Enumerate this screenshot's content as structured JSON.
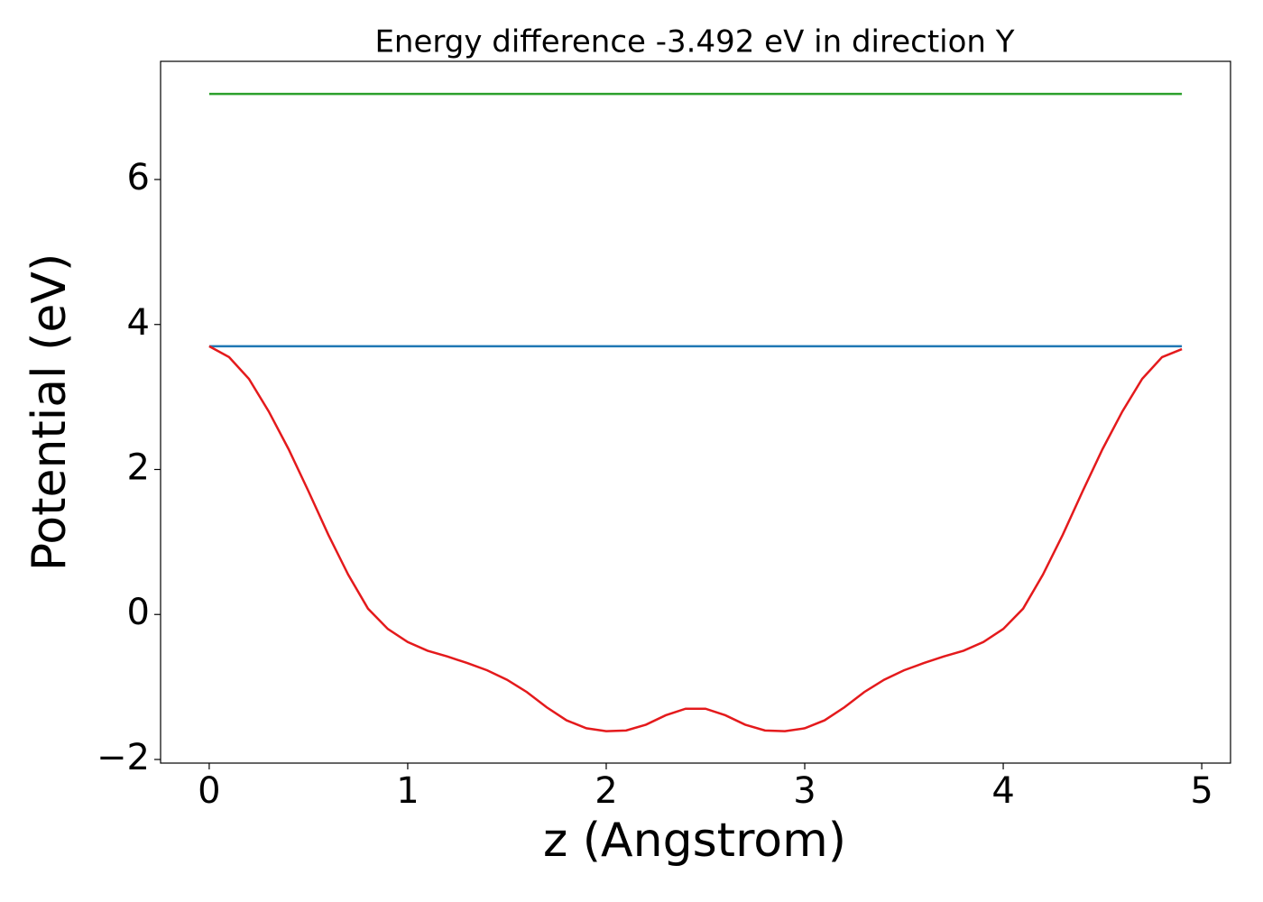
{
  "chart_data": {
    "type": "line",
    "title": "Energy difference -3.492 eV in direction Y",
    "xlabel": "z (Angstrom)",
    "ylabel": "Potential (eV)",
    "xlim": [
      -0.245,
      5.145
    ],
    "ylim": [
      -2.05,
      7.63
    ],
    "xticks": [
      0,
      1,
      2,
      3,
      4,
      5
    ],
    "yticks": [
      {
        "value": -2,
        "label": "−2"
      },
      0,
      2,
      4,
      6
    ],
    "series": [
      {
        "color": "#2ca02c",
        "x": [
          0,
          4.9
        ],
        "values": [
          7.18,
          7.18
        ]
      },
      {
        "color": "#1f77b4",
        "x": [
          0,
          4.9
        ],
        "values": [
          3.7,
          3.7
        ]
      },
      {
        "color": "#e41a1c",
        "x": [
          0,
          0.1,
          0.2,
          0.3,
          0.4,
          0.5,
          0.6,
          0.7,
          0.8,
          0.9,
          1.0,
          1.1,
          1.2,
          1.3,
          1.4,
          1.5,
          1.6,
          1.7,
          1.8,
          1.9,
          2.0,
          2.1,
          2.2,
          2.3,
          2.4,
          2.5,
          2.6,
          2.7,
          2.8,
          2.9,
          3.0,
          3.1,
          3.2,
          3.3,
          3.4,
          3.5,
          3.6,
          3.7,
          3.8,
          3.9,
          4.0,
          4.1,
          4.2,
          4.3,
          4.4,
          4.5,
          4.6,
          4.7,
          4.8,
          4.9
        ],
        "values": [
          3.7,
          3.55,
          3.25,
          2.8,
          2.28,
          1.7,
          1.1,
          0.55,
          0.08,
          -0.2,
          -0.38,
          -0.5,
          -0.58,
          -0.67,
          -0.77,
          -0.9,
          -1.07,
          -1.28,
          -1.46,
          -1.57,
          -1.61,
          -1.6,
          -1.52,
          -1.39,
          -1.3,
          -1.3,
          -1.39,
          -1.52,
          -1.6,
          -1.61,
          -1.57,
          -1.46,
          -1.28,
          -1.07,
          -0.9,
          -0.77,
          -0.67,
          -0.58,
          -0.5,
          -0.38,
          -0.2,
          0.08,
          0.55,
          1.1,
          1.7,
          2.28,
          2.8,
          3.25,
          3.55,
          3.66
        ]
      }
    ]
  }
}
